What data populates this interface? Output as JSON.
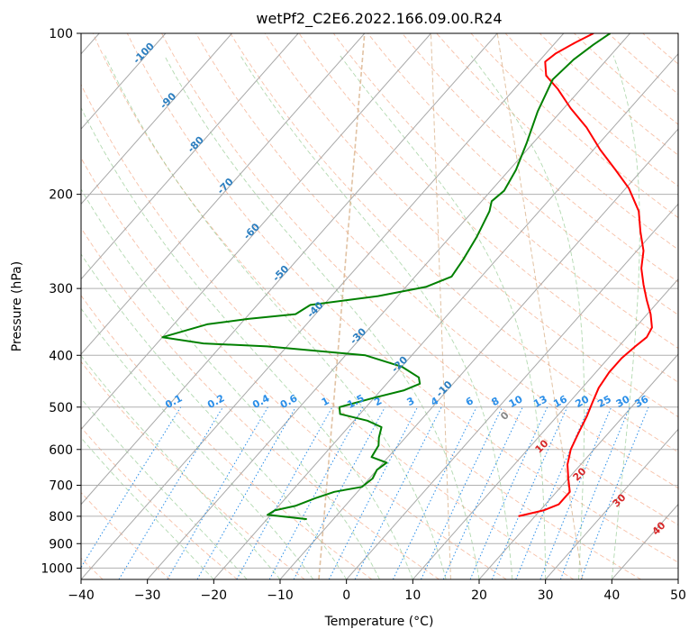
{
  "chart_data": {
    "type": "line",
    "chart_kind": "skew-t log-p",
    "title": "wetPf2_C2E6.2022.166.09.00.R24",
    "xlabel": "Temperature (°C)",
    "ylabel": "Pressure (hPa)",
    "xlim": [
      -40,
      50
    ],
    "ylim": [
      1050,
      100
    ],
    "y_scale": "log",
    "x_ticks": [
      "−40",
      "−30",
      "−20",
      "−10",
      "0",
      "10",
      "20",
      "30",
      "40",
      "50"
    ],
    "x_tick_values": [
      -40,
      -30,
      -20,
      -10,
      0,
      10,
      20,
      30,
      40,
      50
    ],
    "y_ticks": [
      "100",
      "200",
      "300",
      "400",
      "500",
      "600",
      "700",
      "800",
      "900",
      "1000"
    ],
    "y_tick_values": [
      100,
      200,
      300,
      400,
      500,
      600,
      700,
      800,
      900,
      1000
    ],
    "grid": true,
    "isotherm_labels": [
      {
        "text": "-100",
        "t": -100,
        "p": 110
      },
      {
        "text": "-90",
        "t": -90,
        "p": 135
      },
      {
        "text": "-80",
        "t": -80,
        "p": 163
      },
      {
        "text": "-70",
        "t": -70,
        "p": 195
      },
      {
        "text": "-60",
        "t": -60,
        "p": 237
      },
      {
        "text": "-50",
        "t": -50,
        "p": 284
      },
      {
        "text": "-40",
        "t": -40,
        "p": 332
      },
      {
        "text": "-30",
        "t": -30,
        "p": 372
      },
      {
        "text": "-20",
        "t": -20,
        "p": 420
      },
      {
        "text": "-10",
        "t": -10,
        "p": 467
      }
    ],
    "mixing_ratio_labels": [
      "0.1",
      "0.2",
      "0.4",
      "0.6",
      "1",
      "1.5",
      "2",
      "3",
      "4",
      "6",
      "8",
      "10",
      "13",
      "16",
      "20",
      "25",
      "30",
      "36"
    ],
    "mixing_ratio_values": [
      0.1,
      0.2,
      0.4,
      0.6,
      1,
      1.5,
      2,
      3,
      4,
      6,
      8,
      10,
      13,
      16,
      20,
      25,
      30,
      36
    ],
    "wet_bulb_labels": [
      "0",
      "10",
      "20",
      "30",
      "40"
    ],
    "series": [
      {
        "color": "#ff0000",
        "points": [
          [
            17.5,
            800
          ],
          [
            20.5,
            780
          ],
          [
            22.0,
            760
          ],
          [
            22.0,
            720
          ],
          [
            20.0,
            680
          ],
          [
            18.0,
            640
          ],
          [
            16.5,
            600
          ],
          [
            15.5,
            560
          ],
          [
            14.5,
            520
          ],
          [
            13.5,
            490
          ],
          [
            12.5,
            460
          ],
          [
            12.0,
            430
          ],
          [
            12.0,
            405
          ],
          [
            12.5,
            385
          ],
          [
            13.0,
            370
          ],
          [
            12.5,
            355
          ],
          [
            10.5,
            335
          ],
          [
            8.0,
            315
          ],
          [
            5.5,
            295
          ],
          [
            3.0,
            275
          ],
          [
            1.0,
            255
          ],
          [
            -2.0,
            235
          ],
          [
            -5.0,
            215
          ],
          [
            -9.5,
            195
          ],
          [
            -14.0,
            180
          ],
          [
            -19.0,
            165
          ],
          [
            -24.0,
            150
          ],
          [
            -29.0,
            138
          ],
          [
            -33.5,
            127
          ],
          [
            -37.0,
            120
          ],
          [
            -39.0,
            113
          ],
          [
            -38.5,
            109
          ],
          [
            -37.0,
            104
          ],
          [
            -35.5,
            100
          ]
        ]
      },
      {
        "color": "#008000",
        "points": [
          [
            -14.0,
            810
          ],
          [
            -20.5,
            795
          ],
          [
            -20.0,
            780
          ],
          [
            -17.5,
            765
          ],
          [
            -15.5,
            740
          ],
          [
            -13.5,
            720
          ],
          [
            -10.0,
            705
          ],
          [
            -9.5,
            680
          ],
          [
            -10.0,
            655
          ],
          [
            -9.5,
            635
          ],
          [
            -12.5,
            620
          ],
          [
            -13.0,
            590
          ],
          [
            -14.0,
            570
          ],
          [
            -15.0,
            545
          ],
          [
            -18.0,
            530
          ],
          [
            -23.0,
            515
          ],
          [
            -24.0,
            500
          ],
          [
            -20.0,
            480
          ],
          [
            -16.5,
            465
          ],
          [
            -15.0,
            452
          ],
          [
            -16.0,
            440
          ],
          [
            -20.0,
            420
          ],
          [
            -27.0,
            400
          ],
          [
            -43.0,
            385
          ],
          [
            -53.0,
            380
          ],
          [
            -60.0,
            370
          ],
          [
            -55.0,
            350
          ],
          [
            -49.5,
            342
          ],
          [
            -43.0,
            335
          ],
          [
            -42.0,
            322
          ],
          [
            -33.0,
            310
          ],
          [
            -27.0,
            298
          ],
          [
            -24.5,
            285
          ],
          [
            -25.0,
            265
          ],
          [
            -26.0,
            240
          ],
          [
            -27.5,
            215
          ],
          [
            -28.5,
            206
          ],
          [
            -28.0,
            197
          ],
          [
            -29.0,
            180
          ],
          [
            -31.0,
            160
          ],
          [
            -33.5,
            140
          ],
          [
            -35.5,
            122
          ],
          [
            -35.0,
            112
          ],
          [
            -34.0,
            105
          ],
          [
            -33.0,
            100
          ]
        ]
      }
    ]
  }
}
